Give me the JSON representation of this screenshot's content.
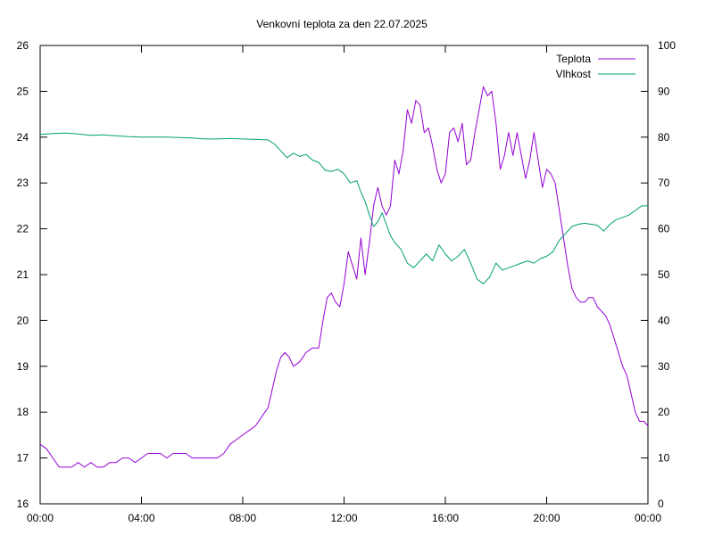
{
  "chart_data": {
    "type": "line",
    "title": "Venkovní teplota za den 22.07.2025",
    "xlabel": "",
    "ylabel": "",
    "y2label": "",
    "xlim_hours": [
      0,
      24
    ],
    "x_tick_labels": [
      "00:00",
      "04:00",
      "08:00",
      "12:00",
      "16:00",
      "20:00",
      "00:00"
    ],
    "ylim": [
      16,
      26
    ],
    "y_ticks": [
      16,
      17,
      18,
      19,
      20,
      21,
      22,
      23,
      24,
      25,
      26
    ],
    "y2lim": [
      0,
      100
    ],
    "y2_ticks": [
      0,
      10,
      20,
      30,
      40,
      50,
      60,
      70,
      80,
      90,
      100
    ],
    "grid": false,
    "legend_position": "top-right",
    "series": [
      {
        "name": "Teplota",
        "axis": "left",
        "color": "#9400d3",
        "points": [
          [
            "00:00",
            17.3
          ],
          [
            "00:15",
            17.2
          ],
          [
            "00:30",
            17.0
          ],
          [
            "00:45",
            16.8
          ],
          [
            "01:00",
            16.8
          ],
          [
            "01:15",
            16.8
          ],
          [
            "01:30",
            16.9
          ],
          [
            "01:45",
            16.8
          ],
          [
            "02:00",
            16.9
          ],
          [
            "02:15",
            16.8
          ],
          [
            "02:30",
            16.8
          ],
          [
            "02:45",
            16.9
          ],
          [
            "03:00",
            16.9
          ],
          [
            "03:15",
            17.0
          ],
          [
            "03:30",
            17.0
          ],
          [
            "03:45",
            16.9
          ],
          [
            "04:00",
            17.0
          ],
          [
            "04:15",
            17.1
          ],
          [
            "04:30",
            17.1
          ],
          [
            "04:45",
            17.1
          ],
          [
            "05:00",
            17.0
          ],
          [
            "05:15",
            17.1
          ],
          [
            "05:30",
            17.1
          ],
          [
            "05:45",
            17.1
          ],
          [
            "06:00",
            17.0
          ],
          [
            "06:30",
            17.0
          ],
          [
            "07:00",
            17.0
          ],
          [
            "07:15",
            17.1
          ],
          [
            "07:30",
            17.3
          ],
          [
            "07:45",
            17.4
          ],
          [
            "08:00",
            17.5
          ],
          [
            "08:15",
            17.6
          ],
          [
            "08:30",
            17.7
          ],
          [
            "08:45",
            17.9
          ],
          [
            "09:00",
            18.1
          ],
          [
            "09:10",
            18.5
          ],
          [
            "09:20",
            18.9
          ],
          [
            "09:30",
            19.2
          ],
          [
            "09:40",
            19.3
          ],
          [
            "09:50",
            19.2
          ],
          [
            "10:00",
            19.0
          ],
          [
            "10:15",
            19.1
          ],
          [
            "10:30",
            19.3
          ],
          [
            "10:45",
            19.4
          ],
          [
            "11:00",
            19.4
          ],
          [
            "11:10",
            20.0
          ],
          [
            "11:20",
            20.5
          ],
          [
            "11:30",
            20.6
          ],
          [
            "11:40",
            20.4
          ],
          [
            "11:50",
            20.3
          ],
          [
            "12:00",
            20.8
          ],
          [
            "12:10",
            21.5
          ],
          [
            "12:20",
            21.2
          ],
          [
            "12:30",
            20.9
          ],
          [
            "12:40",
            21.8
          ],
          [
            "12:50",
            21.0
          ],
          [
            "13:00",
            21.7
          ],
          [
            "13:10",
            22.5
          ],
          [
            "13:20",
            22.9
          ],
          [
            "13:30",
            22.5
          ],
          [
            "13:40",
            22.3
          ],
          [
            "13:50",
            22.5
          ],
          [
            "14:00",
            23.5
          ],
          [
            "14:10",
            23.2
          ],
          [
            "14:20",
            23.7
          ],
          [
            "14:30",
            24.6
          ],
          [
            "14:40",
            24.3
          ],
          [
            "14:50",
            24.8
          ],
          [
            "15:00",
            24.7
          ],
          [
            "15:10",
            24.1
          ],
          [
            "15:20",
            24.2
          ],
          [
            "15:30",
            23.8
          ],
          [
            "15:40",
            23.3
          ],
          [
            "15:50",
            23.0
          ],
          [
            "16:00",
            23.2
          ],
          [
            "16:10",
            24.1
          ],
          [
            "16:20",
            24.2
          ],
          [
            "16:30",
            23.9
          ],
          [
            "16:40",
            24.3
          ],
          [
            "16:50",
            23.4
          ],
          [
            "17:00",
            23.5
          ],
          [
            "17:10",
            24.1
          ],
          [
            "17:20",
            24.6
          ],
          [
            "17:30",
            25.1
          ],
          [
            "17:40",
            24.9
          ],
          [
            "17:50",
            25.0
          ],
          [
            "18:00",
            24.3
          ],
          [
            "18:10",
            23.3
          ],
          [
            "18:20",
            23.6
          ],
          [
            "18:30",
            24.1
          ],
          [
            "18:40",
            23.6
          ],
          [
            "18:50",
            24.1
          ],
          [
            "19:00",
            23.6
          ],
          [
            "19:10",
            23.1
          ],
          [
            "19:20",
            23.5
          ],
          [
            "19:30",
            24.1
          ],
          [
            "19:40",
            23.5
          ],
          [
            "19:50",
            22.9
          ],
          [
            "20:00",
            23.3
          ],
          [
            "20:10",
            23.2
          ],
          [
            "20:20",
            23.0
          ],
          [
            "20:30",
            22.4
          ],
          [
            "20:40",
            21.8
          ],
          [
            "20:50",
            21.2
          ],
          [
            "21:00",
            20.7
          ],
          [
            "21:10",
            20.5
          ],
          [
            "21:20",
            20.4
          ],
          [
            "21:30",
            20.4
          ],
          [
            "21:40",
            20.5
          ],
          [
            "21:50",
            20.5
          ],
          [
            "22:00",
            20.3
          ],
          [
            "22:10",
            20.2
          ],
          [
            "22:20",
            20.1
          ],
          [
            "22:30",
            19.9
          ],
          [
            "22:40",
            19.6
          ],
          [
            "22:50",
            19.3
          ],
          [
            "23:00",
            19.0
          ],
          [
            "23:10",
            18.8
          ],
          [
            "23:20",
            18.4
          ],
          [
            "23:30",
            18.0
          ],
          [
            "23:40",
            17.8
          ],
          [
            "23:50",
            17.8
          ],
          [
            "24:00",
            17.7
          ]
        ]
      },
      {
        "name": "Vlhkost",
        "axis": "right",
        "color": "#009e73",
        "points": [
          [
            "00:00",
            80.6
          ],
          [
            "00:30",
            80.8
          ],
          [
            "01:00",
            80.9
          ],
          [
            "01:30",
            80.7
          ],
          [
            "02:00",
            80.4
          ],
          [
            "02:30",
            80.5
          ],
          [
            "03:00",
            80.3
          ],
          [
            "03:30",
            80.1
          ],
          [
            "04:00",
            80.0
          ],
          [
            "04:30",
            80.0
          ],
          [
            "05:00",
            80.0
          ],
          [
            "05:30",
            79.9
          ],
          [
            "06:00",
            79.8
          ],
          [
            "06:30",
            79.6
          ],
          [
            "07:00",
            79.6
          ],
          [
            "07:30",
            79.7
          ],
          [
            "08:00",
            79.6
          ],
          [
            "08:30",
            79.5
          ],
          [
            "09:00",
            79.4
          ],
          [
            "09:15",
            78.5
          ],
          [
            "09:30",
            77.0
          ],
          [
            "09:45",
            75.5
          ],
          [
            "10:00",
            76.5
          ],
          [
            "10:15",
            75.8
          ],
          [
            "10:30",
            76.2
          ],
          [
            "10:45",
            75.0
          ],
          [
            "11:00",
            74.5
          ],
          [
            "11:15",
            72.8
          ],
          [
            "11:30",
            72.5
          ],
          [
            "11:45",
            73.0
          ],
          [
            "12:00",
            72.0
          ],
          [
            "12:15",
            70.0
          ],
          [
            "12:30",
            70.5
          ],
          [
            "12:40",
            68.0
          ],
          [
            "12:50",
            66.0
          ],
          [
            "13:00",
            63.0
          ],
          [
            "13:10",
            60.5
          ],
          [
            "13:20",
            61.5
          ],
          [
            "13:30",
            63.5
          ],
          [
            "13:40",
            61.0
          ],
          [
            "13:50",
            58.5
          ],
          [
            "14:00",
            57.0
          ],
          [
            "14:15",
            55.5
          ],
          [
            "14:30",
            52.5
          ],
          [
            "14:45",
            51.5
          ],
          [
            "15:00",
            53.0
          ],
          [
            "15:15",
            54.5
          ],
          [
            "15:30",
            53.0
          ],
          [
            "15:45",
            56.5
          ],
          [
            "16:00",
            54.5
          ],
          [
            "16:15",
            53.0
          ],
          [
            "16:30",
            54.0
          ],
          [
            "16:45",
            55.5
          ],
          [
            "17:00",
            52.5
          ],
          [
            "17:15",
            49.0
          ],
          [
            "17:30",
            48.0
          ],
          [
            "17:45",
            49.5
          ],
          [
            "18:00",
            52.5
          ],
          [
            "18:15",
            51.0
          ],
          [
            "18:30",
            51.5
          ],
          [
            "18:45",
            52.0
          ],
          [
            "19:00",
            52.5
          ],
          [
            "19:15",
            53.0
          ],
          [
            "19:30",
            52.5
          ],
          [
            "19:45",
            53.5
          ],
          [
            "20:00",
            54.0
          ],
          [
            "20:15",
            55.0
          ],
          [
            "20:30",
            57.5
          ],
          [
            "20:45",
            59.0
          ],
          [
            "21:00",
            60.5
          ],
          [
            "21:15",
            61.0
          ],
          [
            "21:30",
            61.2
          ],
          [
            "21:45",
            61.0
          ],
          [
            "22:00",
            60.8
          ],
          [
            "22:15",
            59.5
          ],
          [
            "22:30",
            61.0
          ],
          [
            "22:45",
            62.0
          ],
          [
            "23:00",
            62.5
          ],
          [
            "23:15",
            63.0
          ],
          [
            "23:30",
            64.0
          ],
          [
            "23:45",
            65.0
          ],
          [
            "24:00",
            65.0
          ]
        ]
      }
    ]
  }
}
